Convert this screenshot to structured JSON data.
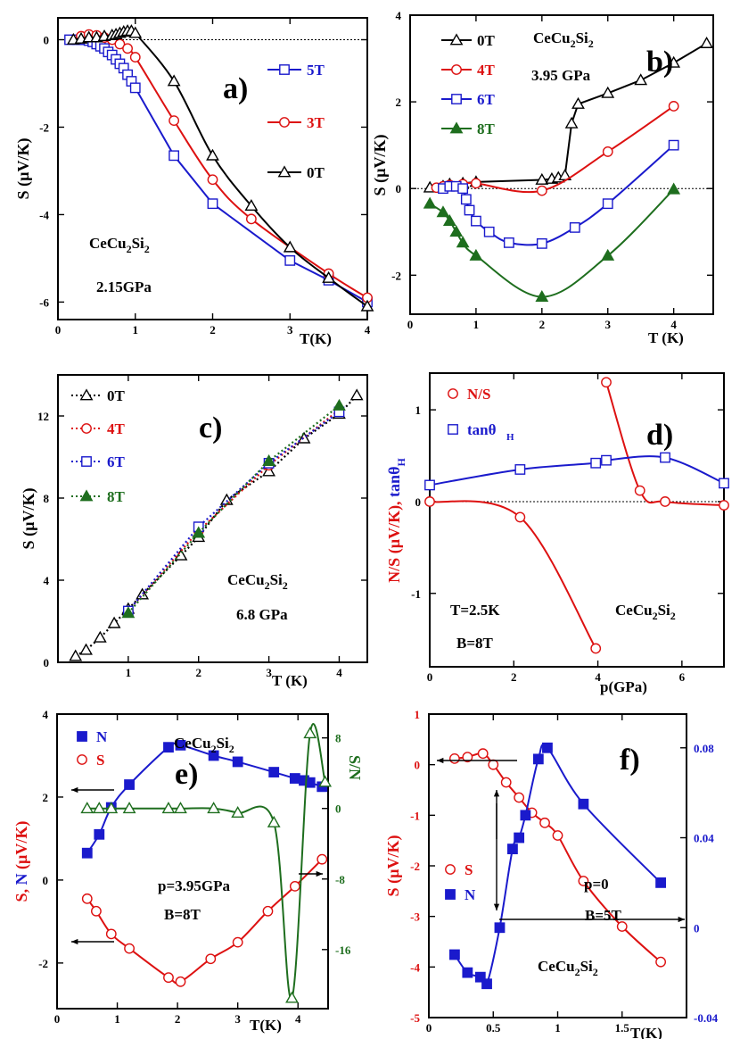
{
  "colors": {
    "black": "#000000",
    "red": "#dd1111",
    "blue": "#1a1acc",
    "green": "#1e6e1e"
  },
  "chart_data": [
    {
      "id": "a",
      "type": "line",
      "letter": "a)",
      "xlim": [
        0,
        4
      ],
      "ylim": [
        -6.4,
        0.5
      ],
      "xticks": [
        0,
        1,
        2,
        3,
        4
      ],
      "xtick_labels": [
        "0",
        "1",
        "2",
        "3",
        "4"
      ],
      "yticks": [
        0,
        -2,
        -4,
        -6
      ],
      "ytick_labels": [
        "0",
        "-2",
        "-4",
        "-6"
      ],
      "ylabel": "S (µV/K)",
      "xlabel": "T(K)",
      "zero_line": true,
      "notes": [
        {
          "main": "CeCu",
          "sub1": "2",
          "mid": "Si",
          "sub2": "2"
        },
        {
          "text": "2.15GPa"
        }
      ],
      "series": [
        {
          "name": "5T",
          "color": "blue",
          "marker": "square",
          "x": [
            0.15,
            0.25,
            0.3,
            0.35,
            0.4,
            0.45,
            0.5,
            0.55,
            0.6,
            0.65,
            0.7,
            0.75,
            0.8,
            0.85,
            0.9,
            0.95,
            1.0,
            1.5,
            2.0,
            3.0,
            3.5,
            4.0
          ],
          "y": [
            0,
            0,
            0,
            0,
            -0.02,
            -0.05,
            -0.1,
            -0.15,
            -0.2,
            -0.28,
            -0.35,
            -0.45,
            -0.55,
            -0.65,
            -0.8,
            -0.95,
            -1.1,
            -2.65,
            -3.75,
            -5.05,
            -5.5,
            -6.0
          ]
        },
        {
          "name": "3T",
          "color": "red",
          "marker": "circle",
          "x": [
            0.3,
            0.4,
            0.5,
            0.6,
            0.7,
            0.8,
            0.9,
            1.0,
            1.5,
            2.0,
            2.5,
            3.5,
            4.0
          ],
          "y": [
            0.08,
            0.12,
            0.1,
            0.05,
            0,
            -0.1,
            -0.2,
            -0.4,
            -1.85,
            -3.2,
            -4.1,
            -5.35,
            -5.9
          ]
        },
        {
          "name": "0T",
          "color": "black",
          "marker": "triangle",
          "x": [
            0.2,
            0.3,
            0.4,
            0.5,
            0.6,
            0.7,
            0.75,
            0.8,
            0.85,
            0.9,
            0.95,
            1.0,
            1.5,
            2.0,
            2.5,
            3.0,
            3.5,
            4.0
          ],
          "y": [
            0,
            0.02,
            0.05,
            0.05,
            0.08,
            0.1,
            0.12,
            0.15,
            0.18,
            0.2,
            0.2,
            0.15,
            -0.95,
            -2.65,
            -3.8,
            -4.75,
            -5.45,
            -6.1
          ]
        }
      ]
    },
    {
      "id": "b",
      "type": "line",
      "letter": "b)",
      "xlim": [
        0,
        4.6
      ],
      "ylim": [
        -2.9,
        4.0
      ],
      "xticks": [
        0,
        1,
        2,
        3,
        4
      ],
      "xtick_labels": [
        "0",
        "1",
        "2",
        "3",
        "4"
      ],
      "yticks": [
        4,
        2,
        0,
        -2
      ],
      "ytick_labels": [
        "4",
        "2",
        "0",
        "-2"
      ],
      "ylabel": "S (µV/K)",
      "xlabel": "T (K)",
      "zero_line": true,
      "notes": [
        {
          "main": "CeCu",
          "sub1": "2",
          "mid": "Si",
          "sub2": "2"
        },
        {
          "text": "3.95 GPa"
        }
      ],
      "series": [
        {
          "name": "0T",
          "color": "black",
          "marker": "triangle",
          "x": [
            0.3,
            0.5,
            0.6,
            0.8,
            1.0,
            2.0,
            2.15,
            2.25,
            2.35,
            2.45,
            2.55,
            3.0,
            3.5,
            4.0,
            4.5
          ],
          "y": [
            0.02,
            0.05,
            0.1,
            0.12,
            0.15,
            0.2,
            0.22,
            0.25,
            0.3,
            1.5,
            1.95,
            2.2,
            2.5,
            2.9,
            3.35
          ]
        },
        {
          "name": "4T",
          "color": "red",
          "marker": "circle",
          "x": [
            0.4,
            0.5,
            0.6,
            0.8,
            1.0,
            2.0,
            3.0,
            4.0
          ],
          "y": [
            0.02,
            0.05,
            0.08,
            0.1,
            0.12,
            -0.05,
            0.85,
            1.9
          ]
        },
        {
          "name": "6T",
          "color": "blue",
          "marker": "square",
          "x": [
            0.5,
            0.6,
            0.7,
            0.8,
            0.85,
            0.9,
            1.0,
            1.2,
            1.5,
            2.0,
            2.5,
            3.0,
            4.0
          ],
          "y": [
            0.0,
            0.05,
            0.05,
            0.0,
            -0.25,
            -0.5,
            -0.75,
            -1.0,
            -1.25,
            -1.27,
            -0.9,
            -0.35,
            1.0
          ]
        },
        {
          "name": "8T",
          "color": "green",
          "marker": "filled-triangle",
          "x": [
            0.3,
            0.5,
            0.6,
            0.7,
            0.8,
            1.0,
            2.0,
            3.0,
            4.0
          ],
          "y": [
            -0.35,
            -0.55,
            -0.75,
            -1.0,
            -1.25,
            -1.55,
            -2.5,
            -1.55,
            -0.02
          ]
        }
      ]
    },
    {
      "id": "c",
      "type": "line",
      "letter": "c)",
      "xlim": [
        0,
        4.4
      ],
      "ylim": [
        0,
        14
      ],
      "xticks": [
        0,
        1,
        2,
        3,
        4
      ],
      "xtick_labels": [
        "",
        "1",
        "2",
        "3",
        "4"
      ],
      "yticks": [
        0,
        4,
        8,
        12
      ],
      "ytick_labels": [
        "0",
        "4",
        "8",
        "12"
      ],
      "ylabel": "S (µV/K)",
      "xlabel": "T (K)",
      "zero_line": false,
      "notes": [
        {
          "main": "CeCu",
          "sub1": "2",
          "mid": "Si",
          "sub2": "2"
        },
        {
          "text": "6.8 GPa"
        }
      ],
      "series": [
        {
          "name": "0T",
          "color": "black",
          "marker": "triangle",
          "dotted": true,
          "x": [
            0.25,
            0.4,
            0.6,
            0.8,
            1.0,
            1.2,
            1.75,
            2.0,
            2.4,
            3.0,
            3.5,
            4.0,
            4.25
          ],
          "y": [
            0.3,
            0.6,
            1.2,
            1.9,
            2.6,
            3.3,
            5.2,
            6.1,
            7.9,
            9.3,
            10.9,
            12.1,
            13.0
          ]
        },
        {
          "name": "4T",
          "color": "red",
          "marker": "circle",
          "dotted": true,
          "x": [
            1.0,
            2.0,
            3.0,
            4.0
          ],
          "y": [
            2.5,
            6.4,
            9.6,
            12.3
          ]
        },
        {
          "name": "6T",
          "color": "blue",
          "marker": "square",
          "dotted": true,
          "x": [
            1.0,
            2.0,
            3.0,
            4.0
          ],
          "y": [
            2.5,
            6.6,
            9.7,
            12.2
          ]
        },
        {
          "name": "8T",
          "color": "green",
          "marker": "filled-triangle",
          "dotted": true,
          "x": [
            1.0,
            2.0,
            3.0,
            4.0
          ],
          "y": [
            2.4,
            6.3,
            9.8,
            12.5
          ]
        }
      ]
    },
    {
      "id": "d",
      "type": "line",
      "letter": "d)",
      "xlim": [
        0,
        7
      ],
      "ylim": [
        -1.8,
        1.4
      ],
      "xticks": [
        0,
        2,
        4,
        6
      ],
      "xtick_labels": [
        "0",
        "2",
        "4",
        "6"
      ],
      "yticks": [
        1,
        0,
        -1
      ],
      "ytick_labels": [
        "1",
        "0",
        "-1"
      ],
      "ylabel": "N/S (µV/K), tanθ",
      "ylabel_sub": "H",
      "xlabel": "p(GPa)",
      "zero_line": true,
      "notes": [
        {
          "text": "T=2.5K"
        },
        {
          "text": "B=8T"
        },
        {
          "main": "CeCu",
          "sub1": "2",
          "mid": "Si",
          "sub2": "2"
        }
      ],
      "series": [
        {
          "name": "N/S",
          "color": "red",
          "marker": "circle",
          "x": [
            0,
            2.15,
            3.95,
            4.2,
            5.0,
            5.6,
            7.0
          ],
          "y": [
            0,
            -0.17,
            -1.6,
            1.3,
            0.12,
            0.0,
            -0.04
          ]
        },
        {
          "name": "tanθ",
          "name_sub": "H",
          "color": "blue",
          "marker": "square",
          "x": [
            0,
            2.15,
            3.95,
            4.2,
            5.6,
            7.0
          ],
          "y": [
            0.18,
            0.35,
            0.42,
            0.45,
            0.48,
            0.2
          ]
        }
      ]
    },
    {
      "id": "e",
      "type": "line",
      "letter": "e)",
      "xlim": [
        0,
        4.5
      ],
      "ylim": [
        -3.1,
        4.0
      ],
      "y2lim": [
        -22.7,
        10.7
      ],
      "xticks": [
        0,
        1,
        2,
        3,
        4
      ],
      "xtick_labels": [
        "0",
        "1",
        "2",
        "3",
        "4"
      ],
      "yticks": [
        4,
        2,
        0,
        -2
      ],
      "ytick_labels": [
        "4",
        "2",
        "0",
        "-2"
      ],
      "y2ticks": [
        8,
        0,
        -8,
        -16
      ],
      "y2tick_labels": [
        "8",
        "0",
        "-8",
        "-16"
      ],
      "ylabel": "S, N (µV/K)",
      "y2label": "S/N",
      "xlabel": "T(K)",
      "zero_line": false,
      "notes": [
        {
          "main": "CeCu",
          "sub1": "2",
          "mid": "Si",
          "sub2": "2"
        },
        {
          "text": "p=3.95GPa"
        },
        {
          "text": "B=8T"
        }
      ],
      "series": [
        {
          "name": "N",
          "color": "blue",
          "marker": "filled-square",
          "x": [
            0.5,
            0.7,
            0.9,
            1.2,
            1.85,
            2.05,
            2.6,
            3.0,
            3.6,
            3.95,
            4.1,
            4.2,
            4.4
          ],
          "y": [
            0.65,
            1.1,
            1.75,
            2.3,
            3.2,
            3.25,
            3.0,
            2.85,
            2.6,
            2.45,
            2.4,
            2.35,
            2.25
          ]
        },
        {
          "name": "S",
          "color": "red",
          "marker": "circle",
          "x": [
            0.5,
            0.65,
            0.9,
            1.2,
            1.85,
            2.05,
            2.55,
            3.0,
            3.5,
            3.95,
            4.4
          ],
          "y": [
            -0.45,
            -0.75,
            -1.3,
            -1.65,
            -2.35,
            -2.45,
            -1.9,
            -1.5,
            -0.75,
            -0.15,
            0.5
          ]
        },
        {
          "name": "S/N",
          "axis": "y2",
          "color": "green",
          "marker": "triangle",
          "x": [
            0.5,
            0.7,
            0.9,
            1.2,
            1.85,
            2.05,
            2.6,
            3.0,
            3.6,
            3.9,
            4.2,
            4.45
          ],
          "y": [
            0,
            0,
            0,
            0,
            0,
            0,
            0,
            -0.5,
            -1.6,
            -21.5,
            8.5,
            3.0
          ]
        }
      ]
    },
    {
      "id": "f",
      "type": "line",
      "letter": "f)",
      "xlim": [
        0,
        2.0
      ],
      "ylim": [
        -5,
        1
      ],
      "y2lim": [
        -0.04,
        0.095
      ],
      "xticks": [
        0,
        0.5,
        1,
        1.5
      ],
      "xtick_labels": [
        "0",
        "0.5",
        "1",
        "1.5"
      ],
      "yticks": [
        1,
        0,
        -1,
        -2,
        -3,
        -4,
        -5
      ],
      "ytick_labels": [
        "1",
        "0",
        "-1",
        "-2",
        "-3",
        "-4",
        "-5"
      ],
      "y2ticks": [
        0.08,
        0.04,
        0,
        -0.04
      ],
      "y2tick_labels": [
        "0.08",
        "0.04",
        "0",
        "-0.04"
      ],
      "ylabel": "S (µV/K)",
      "xlabel": "T(K)",
      "zero_line": false,
      "notes": [
        {
          "text": "p=0"
        },
        {
          "text": "B=5T"
        },
        {
          "main": "CeCu",
          "sub1": "2",
          "mid": "Si",
          "sub2": "2"
        }
      ],
      "series": [
        {
          "name": "S",
          "color": "red",
          "marker": "circle",
          "x": [
            0.2,
            0.3,
            0.42,
            0.5,
            0.6,
            0.7,
            0.8,
            0.9,
            1.0,
            1.2,
            1.5,
            1.8
          ],
          "y": [
            0.12,
            0.15,
            0.22,
            0.0,
            -0.35,
            -0.65,
            -0.95,
            -1.15,
            -1.4,
            -2.3,
            -3.2,
            -3.9
          ]
        },
        {
          "name": "N",
          "axis": "y2",
          "color": "blue",
          "marker": "filled-square",
          "x": [
            0.2,
            0.3,
            0.4,
            0.45,
            0.55,
            0.65,
            0.7,
            0.75,
            0.85,
            0.92,
            1.2,
            1.8
          ],
          "y": [
            -0.012,
            -0.02,
            -0.022,
            -0.025,
            0.0,
            0.035,
            0.04,
            0.05,
            0.075,
            0.08,
            0.055,
            0.02
          ]
        }
      ]
    }
  ]
}
